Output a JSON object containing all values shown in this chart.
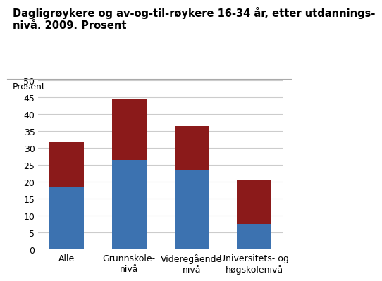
{
  "title_line1": "Dagligrøykere og av-og-til-røykere 16-34 år, etter utdannings-",
  "title_line2": "nivå. 2009. Prosent",
  "ylabel": "Prosent",
  "categories": [
    "Alle",
    "Grunnskole-\nnivå",
    "Videregående\nnivå",
    "Universitets- og\nhøgskolenivå"
  ],
  "blue_values": [
    18.5,
    26.5,
    23.5,
    7.5
  ],
  "red_values": [
    13.5,
    18.0,
    13.0,
    13.0
  ],
  "blue_color": "#3C72B0",
  "red_color": "#8B1A1A",
  "ylim": [
    0,
    50
  ],
  "yticks": [
    0,
    5,
    10,
    15,
    20,
    25,
    30,
    35,
    40,
    45,
    50
  ],
  "grid_color": "#cccccc",
  "bg_color": "#ffffff",
  "title_fontsize": 10.5,
  "tick_fontsize": 9,
  "ylabel_fontsize": 9
}
